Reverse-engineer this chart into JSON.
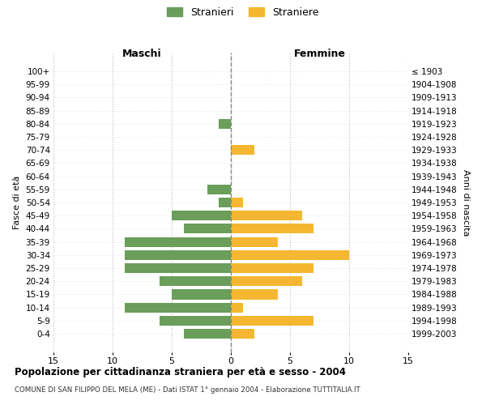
{
  "age_groups": [
    "100+",
    "95-99",
    "90-94",
    "85-89",
    "80-84",
    "75-79",
    "70-74",
    "65-69",
    "60-64",
    "55-59",
    "50-54",
    "45-49",
    "40-44",
    "35-39",
    "30-34",
    "25-29",
    "20-24",
    "15-19",
    "10-14",
    "5-9",
    "0-4"
  ],
  "birth_years": [
    "≤ 1903",
    "1904-1908",
    "1909-1913",
    "1914-1918",
    "1919-1923",
    "1924-1928",
    "1929-1933",
    "1934-1938",
    "1939-1943",
    "1944-1948",
    "1949-1953",
    "1954-1958",
    "1959-1963",
    "1964-1968",
    "1969-1973",
    "1974-1978",
    "1979-1983",
    "1984-1988",
    "1989-1993",
    "1994-1998",
    "1999-2003"
  ],
  "maschi": [
    0,
    0,
    0,
    0,
    1,
    0,
    0,
    0,
    0,
    2,
    1,
    5,
    4,
    9,
    9,
    9,
    6,
    5,
    9,
    6,
    4
  ],
  "femmine": [
    0,
    0,
    0,
    0,
    0,
    0,
    2,
    0,
    0,
    0,
    1,
    6,
    7,
    4,
    10,
    7,
    6,
    4,
    1,
    7,
    2
  ],
  "color_maschi": "#6a9e5a",
  "color_femmine": "#f5b731",
  "title": "Popolazione per cittadinanza straniera per età e sesso - 2004",
  "subtitle": "COMUNE DI SAN FILIPPO DEL MELA (ME) - Dati ISTAT 1° gennaio 2004 - Elaborazione TUTTITALIA.IT",
  "xlabel_left": "Maschi",
  "xlabel_right": "Femmine",
  "ylabel_left": "Fasce di età",
  "ylabel_right": "Anni di nascita",
  "legend_maschi": "Stranieri",
  "legend_femmine": "Straniere",
  "xlim": 15,
  "background_color": "#ffffff",
  "grid_color": "#cccccc"
}
